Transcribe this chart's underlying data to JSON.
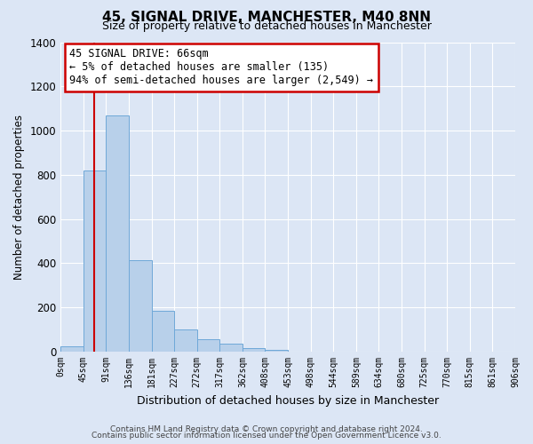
{
  "title": "45, SIGNAL DRIVE, MANCHESTER, M40 8NN",
  "subtitle": "Size of property relative to detached houses in Manchester",
  "xlabel": "Distribution of detached houses by size in Manchester",
  "ylabel": "Number of detached properties",
  "bar_values": [
    25,
    820,
    1070,
    415,
    185,
    100,
    55,
    38,
    18,
    10,
    0,
    0,
    0,
    0,
    0,
    0,
    0,
    0,
    0,
    0
  ],
  "bar_color": "#b8d0ea",
  "bar_edge_color": "#6fa8d8",
  "x_labels": [
    "0sqm",
    "45sqm",
    "91sqm",
    "136sqm",
    "181sqm",
    "227sqm",
    "272sqm",
    "317sqm",
    "362sqm",
    "408sqm",
    "453sqm",
    "498sqm",
    "544sqm",
    "589sqm",
    "634sqm",
    "680sqm",
    "725sqm",
    "770sqm",
    "815sqm",
    "861sqm",
    "906sqm"
  ],
  "ylim": [
    0,
    1400
  ],
  "yticks": [
    0,
    200,
    400,
    600,
    800,
    1000,
    1200,
    1400
  ],
  "vline_x": 1.47,
  "vline_color": "#cc0000",
  "annotation_title": "45 SIGNAL DRIVE: 66sqm",
  "annotation_line1": "← 5% of detached houses are smaller (135)",
  "annotation_line2": "94% of semi-detached houses are larger (2,549) →",
  "annotation_box_facecolor": "#ffffff",
  "annotation_box_edgecolor": "#cc0000",
  "background_color": "#dce6f5",
  "plot_bg_color": "#dce6f5",
  "footer_line1": "Contains HM Land Registry data © Crown copyright and database right 2024.",
  "footer_line2": "Contains public sector information licensed under the Open Government Licence v3.0.",
  "title_fontsize": 11,
  "subtitle_fontsize": 9,
  "ylabel_fontsize": 8.5,
  "xlabel_fontsize": 9
}
